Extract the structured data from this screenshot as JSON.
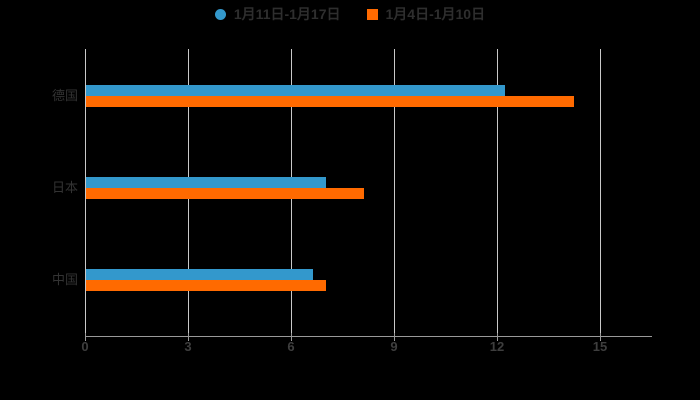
{
  "colors": {
    "background": "#000000",
    "series_blue": "#3398cc",
    "series_orange": "#ff6a00",
    "gridline": "#c9c9c9",
    "axis_line": "#999999",
    "tick_label": "#3e3e3e",
    "category_label": "#333333",
    "legend_text": "#2e2e2e"
  },
  "legend": {
    "items": [
      {
        "label": "1月11日-1月17日",
        "color": "#3398cc",
        "marker": "circle"
      },
      {
        "label": "1月4日-1月10日",
        "color": "#ff6a00",
        "marker": "square"
      }
    ]
  },
  "chart_data": {
    "type": "bar",
    "orientation": "horizontal",
    "title": "",
    "xlabel": "",
    "ylabel": "",
    "categories": [
      "德国",
      "日本",
      "中国"
    ],
    "series": [
      {
        "name": "1月11日-1月17日",
        "color": "#3398cc",
        "values": [
          12.2,
          7.0,
          6.6
        ]
      },
      {
        "name": "1月4日-1月10日",
        "color": "#ff6a00",
        "values": [
          14.2,
          8.1,
          7.0
        ]
      }
    ],
    "xlim": [
      0,
      15
    ],
    "x_ticks": [
      0,
      3,
      6,
      9,
      12,
      15
    ],
    "grid": true,
    "legend_position": "top"
  }
}
